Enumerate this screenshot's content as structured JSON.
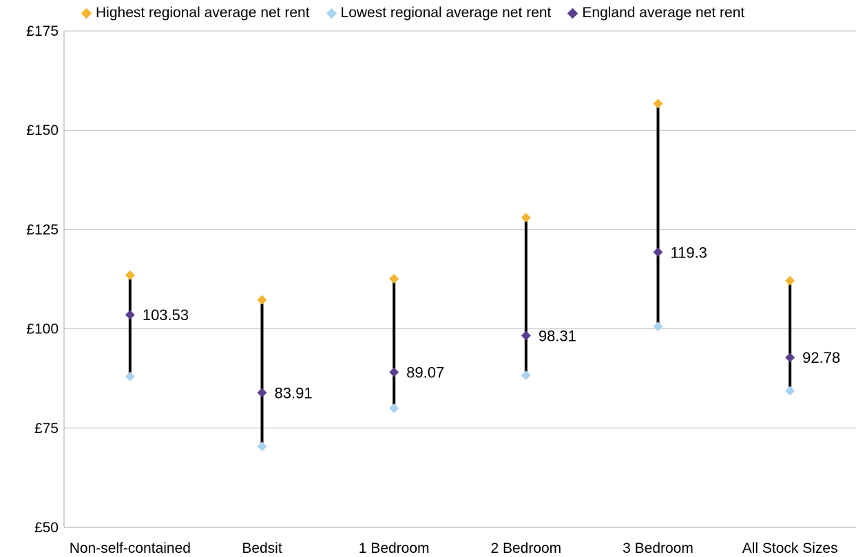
{
  "chart_data": {
    "type": "scatter",
    "categories": [
      "Non-self-contained",
      "Bedsit",
      "1 Bedroom",
      "2 Bedroom",
      "3 Bedroom",
      "All Stock Sizes"
    ],
    "series": [
      {
        "name": "Highest regional average net rent",
        "color": "#F4B530",
        "values": [
          113.5,
          107.3,
          112.6,
          128.0,
          156.7,
          112.1
        ]
      },
      {
        "name": "Lowest regional average net rent",
        "color": "#A9D3EF",
        "values": [
          88.0,
          70.4,
          80.0,
          88.3,
          100.6,
          84.4
        ]
      },
      {
        "name": "England average net rent",
        "color": "#5B3F8E",
        "values": [
          103.53,
          83.91,
          89.07,
          98.31,
          119.3,
          92.78
        ]
      }
    ],
    "data_labels": [
      "103.53",
      "83.91",
      "89.07",
      "98.31",
      "119.3",
      "92.78"
    ],
    "y_ticks": [
      "£50",
      "£75",
      "£100",
      "£125",
      "£150",
      "£175"
    ],
    "ylim": [
      50,
      175
    ],
    "grid": true,
    "legend_position": "top"
  }
}
